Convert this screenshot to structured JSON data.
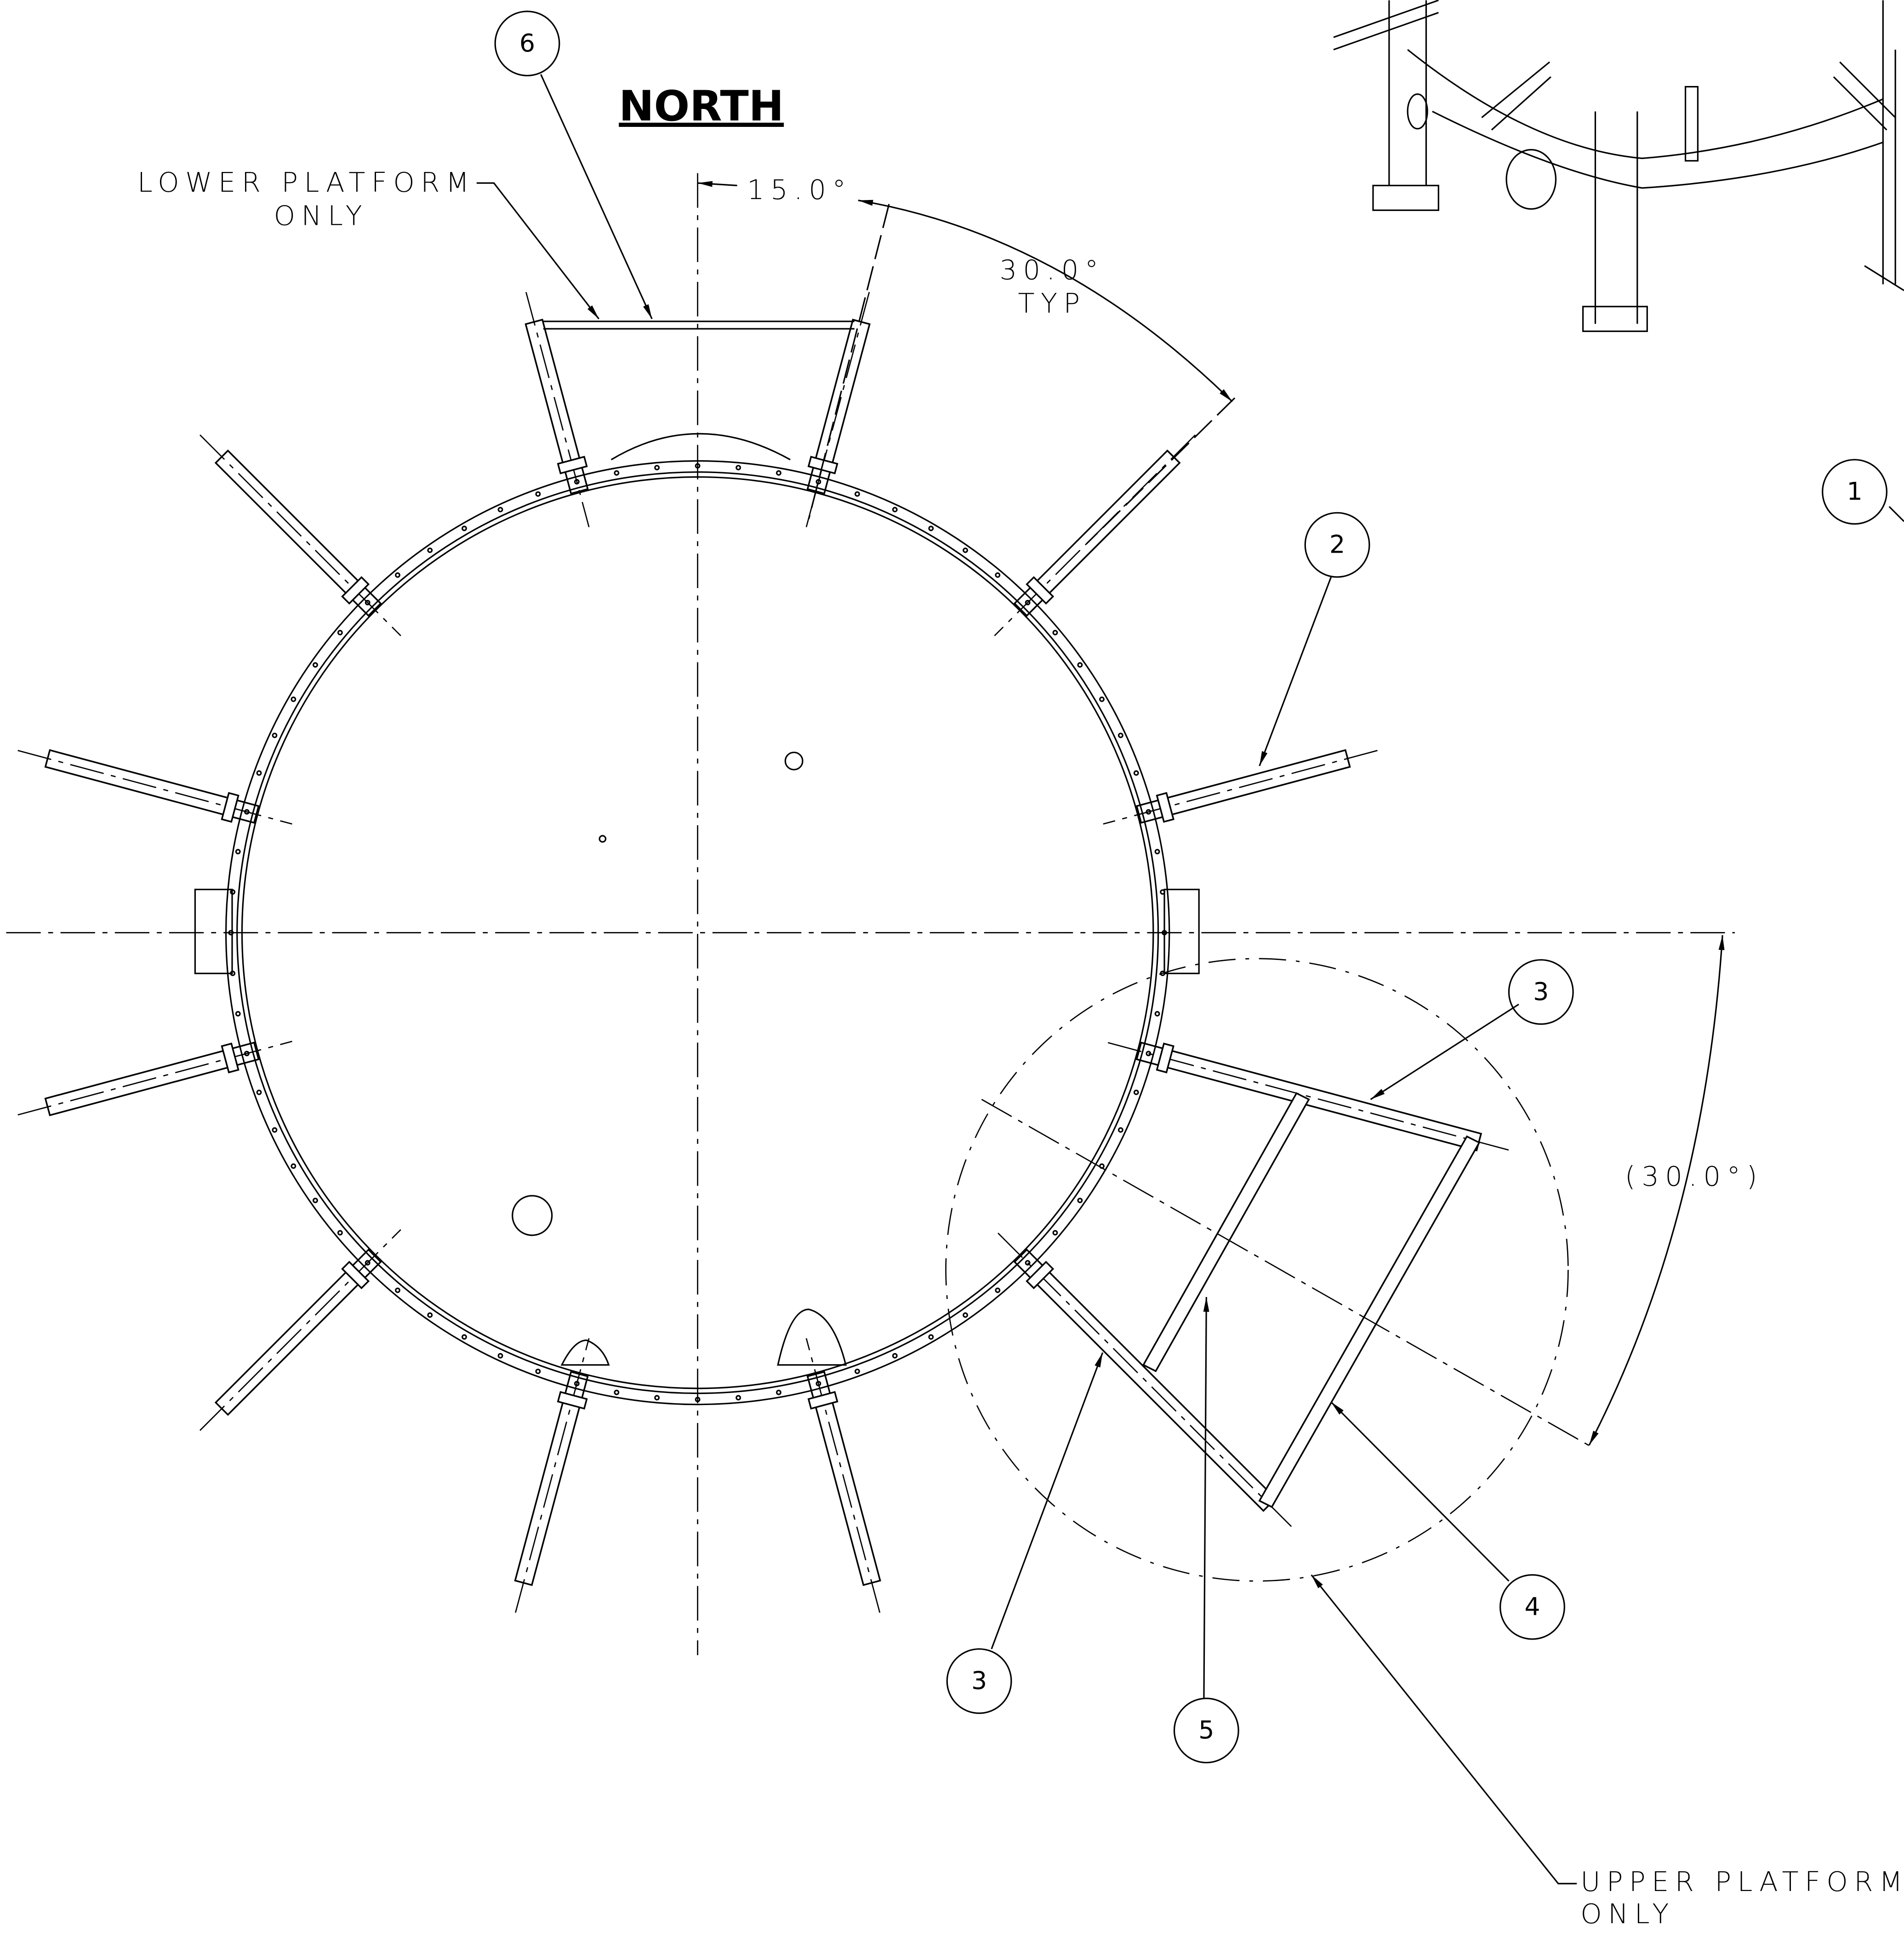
{
  "title": "NORTH",
  "notes": {
    "lower_platform": [
      "LOWER PLATFORM",
      "ONLY"
    ],
    "upper_platform": [
      "UPPER PLATFORM",
      "ONLY"
    ]
  },
  "dimensions": {
    "angle_offset": "15.0°",
    "angle_spacing": [
      "30.0°",
      "TYP"
    ],
    "angle_reference": "(30.0°)"
  },
  "balloons": [
    {
      "label": "6"
    },
    {
      "label": "1"
    },
    {
      "label": "2"
    },
    {
      "label": "3"
    },
    {
      "label": "4"
    },
    {
      "label": "3"
    },
    {
      "label": "5"
    }
  ]
}
